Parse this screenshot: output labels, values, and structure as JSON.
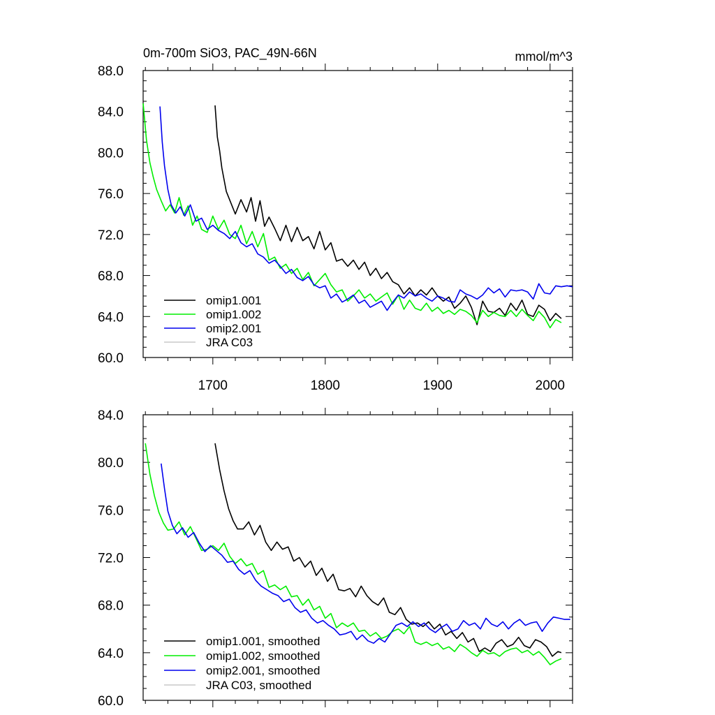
{
  "chart_data": [
    {
      "type": "line",
      "title_left": "0m-700m SiO3, PAC_49N-66N",
      "title_right": "mmol/m^3",
      "xlim": [
        1638,
        2020
      ],
      "ylim": [
        60,
        88
      ],
      "xticks": [
        1700,
        1800,
        1900,
        2000
      ],
      "xtick_labels": [
        "1700",
        "1800",
        "1900",
        "2000"
      ],
      "yticks": [
        60,
        64,
        68,
        72,
        76,
        80,
        84,
        88
      ],
      "ytick_labels": [
        "60.0",
        "64.0",
        "68.0",
        "72.0",
        "76.0",
        "80.0",
        "84.0",
        "88.0"
      ],
      "legend_position": "bottom-left",
      "series": [
        {
          "name": "omip1.001",
          "color": "#000000",
          "x": [
            1702,
            1704,
            1706,
            1708,
            1712,
            1716,
            1720,
            1725,
            1730,
            1734,
            1738,
            1742,
            1746,
            1750,
            1755,
            1760,
            1765,
            1770,
            1775,
            1780,
            1785,
            1790,
            1795,
            1800,
            1805,
            1810,
            1815,
            1820,
            1825,
            1830,
            1835,
            1840,
            1845,
            1850,
            1855,
            1860,
            1865,
            1870,
            1875,
            1880,
            1885,
            1890,
            1895,
            1900,
            1905,
            1910,
            1915,
            1920,
            1925,
            1930,
            1935,
            1940,
            1945,
            1950,
            1955,
            1960,
            1965,
            1970,
            1975,
            1980,
            1985,
            1990,
            1995,
            2000,
            2005,
            2010
          ],
          "y": [
            84.6,
            81.5,
            80.2,
            78.5,
            76.2,
            75.1,
            74.0,
            75.4,
            74.2,
            75.6,
            73.3,
            75.3,
            72.8,
            73.7,
            72.6,
            71.4,
            72.9,
            71.3,
            72.7,
            71.4,
            71.8,
            70.6,
            72.3,
            70.5,
            71.2,
            69.4,
            69.6,
            68.9,
            69.5,
            68.6,
            69.3,
            68.0,
            68.7,
            67.7,
            68.3,
            67.4,
            67.1,
            66.2,
            66.8,
            66.0,
            66.6,
            66.1,
            66.8,
            66.0,
            65.5,
            65.9,
            64.8,
            65.3,
            66.0,
            64.9,
            63.2,
            65.5,
            64.5,
            64.4,
            64.8,
            64.1,
            65.3,
            64.6,
            65.6,
            64.2,
            64.0,
            65.1,
            64.7,
            63.6,
            64.3,
            63.8
          ]
        },
        {
          "name": "omip1.002",
          "color": "#00ee00",
          "x": [
            1638,
            1641,
            1644,
            1647,
            1650,
            1654,
            1658,
            1662,
            1666,
            1670,
            1674,
            1678,
            1682,
            1686,
            1690,
            1695,
            1700,
            1705,
            1710,
            1715,
            1720,
            1725,
            1730,
            1735,
            1740,
            1745,
            1750,
            1755,
            1760,
            1765,
            1770,
            1775,
            1780,
            1785,
            1790,
            1795,
            1800,
            1805,
            1810,
            1815,
            1820,
            1825,
            1830,
            1835,
            1840,
            1845,
            1850,
            1855,
            1860,
            1865,
            1870,
            1875,
            1880,
            1885,
            1890,
            1895,
            1900,
            1905,
            1910,
            1915,
            1920,
            1925,
            1930,
            1935,
            1940,
            1945,
            1950,
            1955,
            1960,
            1965,
            1970,
            1975,
            1980,
            1985,
            1990,
            1995,
            2000,
            2005,
            2010
          ],
          "y": [
            84.8,
            81.2,
            79.0,
            77.6,
            76.4,
            75.3,
            74.3,
            74.9,
            74.1,
            75.6,
            73.9,
            74.8,
            72.9,
            73.8,
            72.5,
            72.2,
            73.8,
            72.5,
            73.4,
            72.0,
            71.6,
            72.9,
            71.1,
            72.3,
            70.8,
            72.1,
            69.5,
            69.8,
            68.7,
            69.1,
            68.2,
            68.7,
            67.6,
            68.3,
            67.0,
            67.6,
            68.2,
            67.1,
            66.4,
            66.6,
            65.5,
            66.0,
            66.6,
            65.8,
            66.2,
            65.5,
            65.9,
            66.3,
            65.2,
            66.1,
            64.7,
            65.6,
            64.8,
            64.6,
            65.3,
            64.5,
            64.9,
            64.3,
            64.6,
            64.2,
            64.7,
            64.5,
            64.1,
            63.4,
            64.6,
            64.0,
            64.4,
            64.1,
            64.0,
            64.6,
            64.0,
            64.7,
            64.1,
            63.6,
            64.5,
            63.9,
            62.9,
            63.7,
            63.4
          ]
        },
        {
          "name": "omip2.001",
          "color": "#0000ee",
          "x": [
            1653,
            1655,
            1657,
            1660,
            1663,
            1667,
            1671,
            1675,
            1680,
            1685,
            1690,
            1695,
            1700,
            1705,
            1710,
            1715,
            1720,
            1725,
            1730,
            1735,
            1740,
            1745,
            1750,
            1755,
            1760,
            1765,
            1770,
            1775,
            1780,
            1785,
            1790,
            1795,
            1800,
            1805,
            1810,
            1815,
            1820,
            1825,
            1830,
            1835,
            1840,
            1845,
            1850,
            1855,
            1860,
            1865,
            1870,
            1875,
            1880,
            1885,
            1890,
            1895,
            1900,
            1905,
            1910,
            1915,
            1920,
            1925,
            1930,
            1935,
            1940,
            1945,
            1950,
            1955,
            1960,
            1965,
            1970,
            1975,
            1980,
            1985,
            1990,
            1995,
            2000,
            2005,
            2010,
            2015,
            2020
          ],
          "y": [
            84.5,
            81.0,
            78.7,
            76.4,
            74.9,
            74.1,
            74.7,
            73.8,
            74.9,
            73.3,
            73.6,
            72.5,
            72.9,
            72.4,
            72.1,
            71.6,
            72.3,
            71.2,
            70.8,
            71.1,
            70.1,
            69.8,
            69.2,
            69.5,
            68.9,
            68.2,
            68.6,
            67.8,
            67.5,
            67.9,
            67.1,
            66.8,
            67.0,
            65.8,
            66.2,
            65.4,
            65.7,
            66.1,
            65.3,
            65.6,
            64.9,
            65.2,
            65.5,
            64.6,
            65.4,
            66.1,
            65.8,
            66.4,
            66.0,
            66.2,
            65.8,
            65.5,
            66.0,
            65.8,
            65.5,
            65.4,
            66.6,
            66.2,
            66.0,
            65.7,
            66.1,
            66.8,
            66.3,
            66.7,
            65.9,
            66.6,
            66.5,
            66.6,
            66.4,
            65.7,
            67.2,
            66.3,
            66.2,
            67.0,
            66.9,
            67.0,
            66.9
          ]
        },
        {
          "name": "JRA C03",
          "color": "#c8c8c8",
          "x": [],
          "y": []
        }
      ]
    },
    {
      "type": "line",
      "xlim": [
        1638,
        2020
      ],
      "ylim": [
        60,
        84
      ],
      "yticks": [
        60,
        64,
        68,
        72,
        76,
        80,
        84
      ],
      "ytick_labels": [
        "60.0",
        "64.0",
        "68.0",
        "72.0",
        "76.0",
        "80.0",
        "84.0"
      ],
      "legend_position": "bottom-left",
      "series": [
        {
          "name": "omip1.001, smoothed",
          "color": "#000000",
          "x": [
            1702,
            1706,
            1710,
            1714,
            1718,
            1722,
            1727,
            1732,
            1737,
            1742,
            1747,
            1752,
            1757,
            1762,
            1767,
            1772,
            1777,
            1782,
            1787,
            1792,
            1797,
            1802,
            1807,
            1812,
            1817,
            1822,
            1827,
            1832,
            1837,
            1842,
            1847,
            1852,
            1857,
            1862,
            1867,
            1872,
            1877,
            1882,
            1887,
            1892,
            1897,
            1902,
            1907,
            1912,
            1917,
            1922,
            1927,
            1932,
            1937,
            1942,
            1947,
            1952,
            1957,
            1962,
            1967,
            1972,
            1977,
            1982,
            1987,
            1992,
            1997,
            2002,
            2007,
            2010
          ],
          "y": [
            81.6,
            79.4,
            77.6,
            76.1,
            75.1,
            74.4,
            74.4,
            75.0,
            73.9,
            74.7,
            73.3,
            72.6,
            73.3,
            72.7,
            72.9,
            71.7,
            72.0,
            71.2,
            71.7,
            70.5,
            71.1,
            70.0,
            70.6,
            69.3,
            69.2,
            69.4,
            68.7,
            69.6,
            68.8,
            68.3,
            68.0,
            68.6,
            67.4,
            67.2,
            67.8,
            66.8,
            66.4,
            66.5,
            66.2,
            66.6,
            66.0,
            66.4,
            65.5,
            65.8,
            65.2,
            65.7,
            64.9,
            65.2,
            64.1,
            64.4,
            64.1,
            64.8,
            65.1,
            64.5,
            64.7,
            65.3,
            64.6,
            64.4,
            65.1,
            64.9,
            64.5,
            63.7,
            64.1,
            64.0
          ]
        },
        {
          "name": "omip1.002, smoothed",
          "color": "#00ee00",
          "x": [
            1640,
            1644,
            1648,
            1652,
            1656,
            1660,
            1665,
            1670,
            1675,
            1680,
            1685,
            1690,
            1695,
            1700,
            1705,
            1710,
            1715,
            1720,
            1725,
            1730,
            1735,
            1740,
            1745,
            1750,
            1755,
            1760,
            1765,
            1770,
            1775,
            1780,
            1785,
            1790,
            1795,
            1800,
            1805,
            1810,
            1815,
            1820,
            1825,
            1830,
            1835,
            1840,
            1845,
            1850,
            1855,
            1860,
            1865,
            1870,
            1875,
            1880,
            1885,
            1890,
            1895,
            1900,
            1905,
            1910,
            1915,
            1920,
            1925,
            1930,
            1935,
            1940,
            1945,
            1950,
            1955,
            1960,
            1965,
            1970,
            1975,
            1980,
            1985,
            1990,
            1995,
            2000,
            2005,
            2010
          ],
          "y": [
            81.6,
            79.0,
            77.2,
            75.8,
            74.9,
            74.3,
            74.4,
            75.0,
            73.9,
            74.6,
            73.6,
            72.6,
            72.7,
            73.0,
            72.6,
            73.2,
            72.1,
            71.5,
            71.9,
            71.3,
            71.5,
            70.6,
            70.9,
            69.5,
            69.7,
            69.3,
            69.6,
            68.7,
            68.8,
            68.0,
            68.5,
            67.6,
            67.9,
            66.9,
            67.3,
            66.1,
            66.5,
            66.2,
            66.5,
            65.8,
            65.9,
            65.4,
            65.7,
            65.2,
            65.4,
            65.8,
            66.0,
            65.6,
            66.2,
            64.9,
            64.7,
            64.9,
            64.6,
            64.8,
            64.3,
            64.5,
            64.1,
            64.7,
            64.4,
            64.0,
            63.7,
            64.2,
            63.9,
            64.0,
            63.7,
            64.1,
            64.3,
            64.4,
            64.0,
            64.2,
            63.8,
            64.1,
            63.6,
            63.0,
            63.3,
            63.5
          ]
        },
        {
          "name": "omip2.001, smoothed",
          "color": "#0000ee",
          "x": [
            1654,
            1657,
            1660,
            1664,
            1668,
            1673,
            1678,
            1683,
            1688,
            1693,
            1698,
            1703,
            1708,
            1713,
            1718,
            1723,
            1728,
            1733,
            1738,
            1743,
            1748,
            1753,
            1758,
            1763,
            1768,
            1773,
            1778,
            1783,
            1788,
            1793,
            1798,
            1803,
            1808,
            1813,
            1818,
            1823,
            1828,
            1833,
            1838,
            1843,
            1848,
            1853,
            1858,
            1863,
            1868,
            1873,
            1878,
            1883,
            1888,
            1893,
            1898,
            1903,
            1908,
            1913,
            1918,
            1923,
            1928,
            1933,
            1938,
            1943,
            1948,
            1953,
            1958,
            1963,
            1968,
            1973,
            1978,
            1983,
            1988,
            1993,
            1998,
            2003,
            2008,
            2013,
            2018
          ],
          "y": [
            79.9,
            77.8,
            75.9,
            74.7,
            74.0,
            74.5,
            73.7,
            74.1,
            73.2,
            72.5,
            73.0,
            72.6,
            72.2,
            71.6,
            71.7,
            71.0,
            70.6,
            70.9,
            70.1,
            69.6,
            69.3,
            69.0,
            68.8,
            68.3,
            68.5,
            67.8,
            67.4,
            67.6,
            66.9,
            66.5,
            66.7,
            66.3,
            66.0,
            65.5,
            65.6,
            65.8,
            65.1,
            65.5,
            65.0,
            64.8,
            65.2,
            64.9,
            65.6,
            66.3,
            66.5,
            66.2,
            66.6,
            66.2,
            66.5,
            66.0,
            65.7,
            66.1,
            66.4,
            65.8,
            66.0,
            66.7,
            66.3,
            66.5,
            66.0,
            66.9,
            66.4,
            66.2,
            66.6,
            66.0,
            66.5,
            66.8,
            66.3,
            66.5,
            66.6,
            65.8,
            66.5,
            67.0,
            66.9,
            66.8,
            66.8
          ]
        },
        {
          "name": "JRA C03, smoothed",
          "color": "#c8c8c8",
          "x": [],
          "y": []
        }
      ]
    }
  ]
}
